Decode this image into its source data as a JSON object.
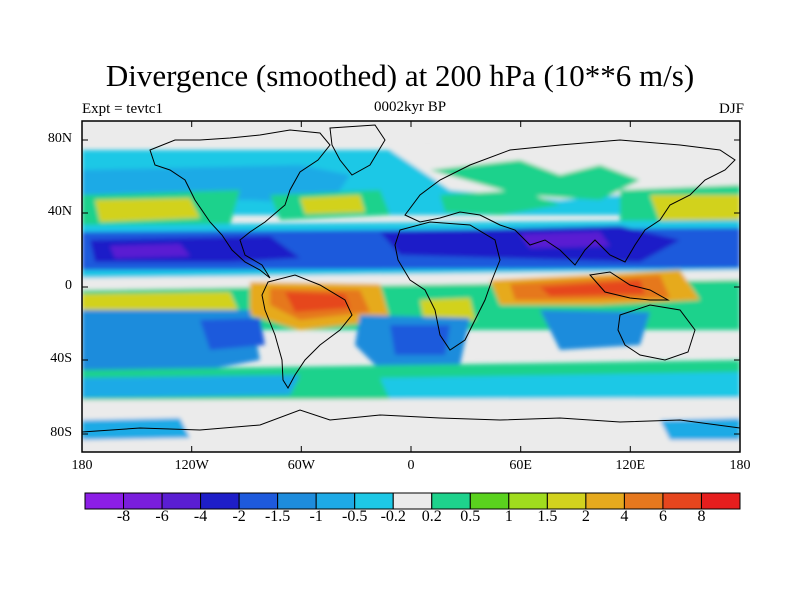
{
  "title": "Divergence (smoothed) at 200 hPa (10**6 m/s)",
  "subtitle_left": "Expt = tevtc1",
  "subtitle_center": "0002kyr BP",
  "subtitle_right": "DJF",
  "y_ticks": [
    "80N",
    "40N",
    "0",
    "40S",
    "80S"
  ],
  "x_ticks": [
    "180",
    "120W",
    "60W",
    "0",
    "60E",
    "120E",
    "180"
  ],
  "colorbar": {
    "colors": [
      "#8c1ee6",
      "#7a1edc",
      "#5a1ed2",
      "#1e1ec8",
      "#1e5adc",
      "#1e8cdc",
      "#1eaae6",
      "#1ec8e6",
      "#ebebeb",
      "#1ed28c",
      "#5ad21e",
      "#a0dc1e",
      "#d2d21e",
      "#e6aa1e",
      "#e6781e",
      "#e6461e",
      "#e61e1e"
    ],
    "labels": [
      "-8",
      "-6",
      "-4",
      "-2",
      "-1.5",
      "-1",
      "-0.5",
      "-0.2",
      "0.2",
      "0.5",
      "1",
      "1.5",
      "2",
      "4",
      "6",
      "8"
    ]
  },
  "map_colors": {
    "neutral": "#ebebeb",
    "cyan": "#1ec8e6",
    "lightblue": "#1eaae6",
    "blue": "#1e8cdc",
    "midblue": "#1e5adc",
    "darkblue": "#1e1ec8",
    "purple": "#5a1ed2",
    "green": "#1ed28c",
    "lgreen": "#5ad21e",
    "ygreen": "#a0dc1e",
    "yellow": "#d2d21e",
    "orange": "#e6aa1e",
    "dorange": "#e6781e",
    "red": "#e6461e"
  }
}
